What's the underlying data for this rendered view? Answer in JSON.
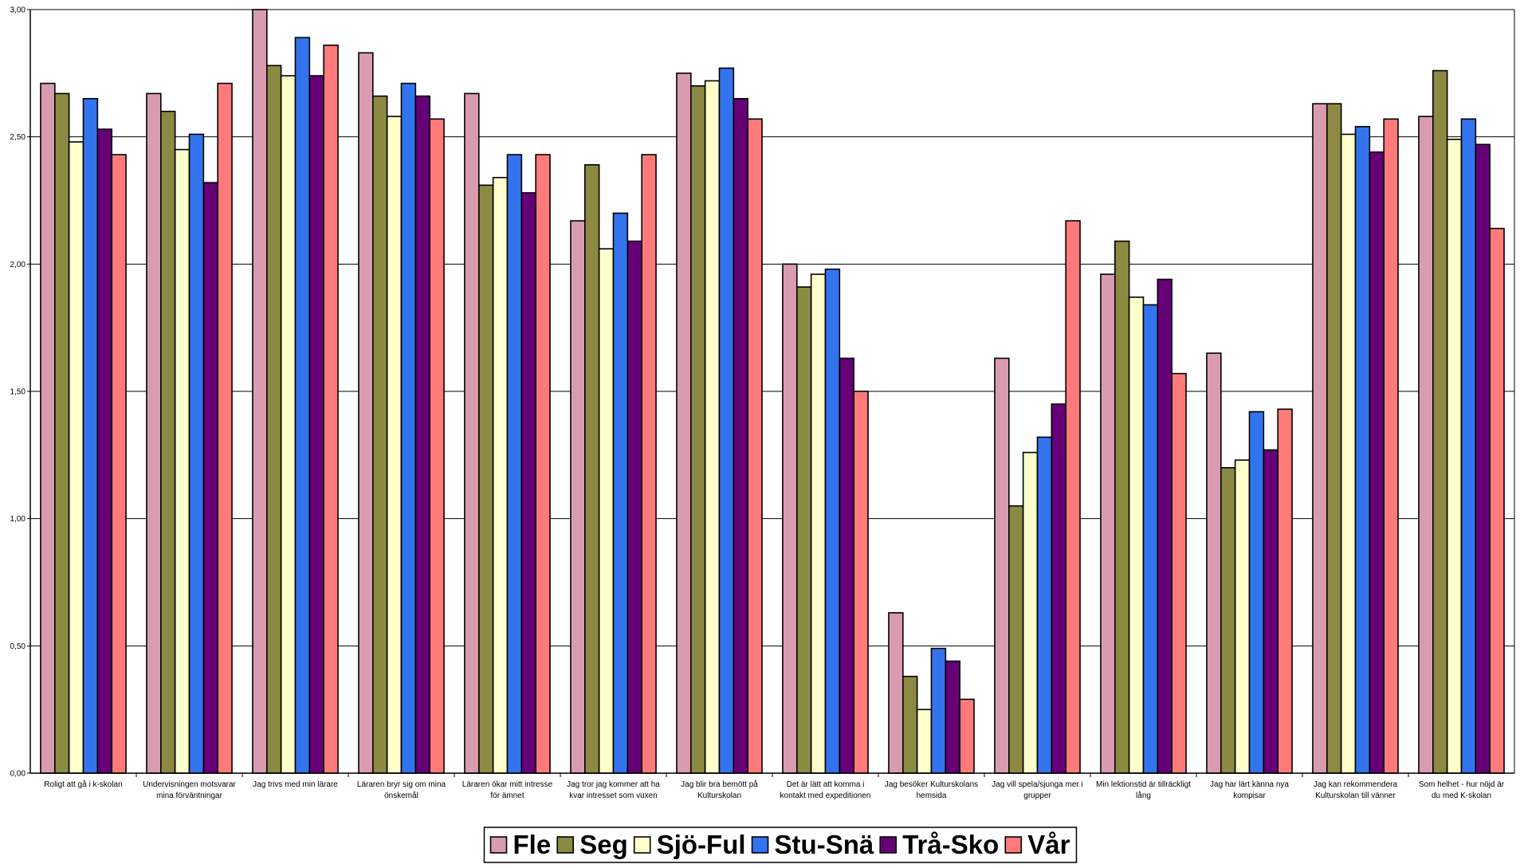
{
  "chart_data": {
    "type": "bar",
    "title": "",
    "xlabel": "",
    "ylabel": "",
    "ylim": [
      0,
      3
    ],
    "yticks": [
      "0,00",
      "0,50",
      "1,00",
      "1,50",
      "2,00",
      "2,50",
      "3,00"
    ],
    "grid": true,
    "legend_position": "bottom-center",
    "categories": [
      [
        "Roligt att gå i k-skolan"
      ],
      [
        "Undervisningen motsvarar",
        "mina förväntningar"
      ],
      [
        "Jag trivs med min lärare"
      ],
      [
        "Läraren bryr sig om mina",
        "önskemål"
      ],
      [
        "Läraren ökar mitt intresse",
        "för ämnet"
      ],
      [
        "Jag tror jag kommer att ha",
        "kvar intresset som vuxen"
      ],
      [
        "Jag blir bra bemött på",
        "Kulturskolan"
      ],
      [
        "Det är lätt att komma i",
        "kontakt med expeditionen"
      ],
      [
        "Jag besöker Kulturskolans",
        "hemsida"
      ],
      [
        "Jag vill spela/sjunga mer i",
        "grupper"
      ],
      [
        "Min lektionstid är tillräckligt",
        "lång"
      ],
      [
        "Jag har lärt känna nya",
        "kompisar"
      ],
      [
        "Jag kan rekommendera",
        "Kulturskolan till vänner"
      ],
      [
        "Som helhet - hur nöjd är",
        "du med K-skolan"
      ]
    ],
    "series": [
      {
        "name": "Fle",
        "color": "#d99bb0",
        "values": [
          2.71,
          2.67,
          3.0,
          2.83,
          2.67,
          2.17,
          2.75,
          2.0,
          0.63,
          1.63,
          1.96,
          1.65,
          2.63,
          2.58
        ]
      },
      {
        "name": "Seg",
        "color": "#8c8a42",
        "values": [
          2.67,
          2.6,
          2.78,
          2.66,
          2.31,
          2.39,
          2.7,
          1.91,
          0.38,
          1.05,
          2.09,
          1.2,
          2.63,
          2.76
        ]
      },
      {
        "name": "Sjö-Ful",
        "color": "#ffffcc",
        "values": [
          2.48,
          2.45,
          2.74,
          2.58,
          2.34,
          2.06,
          2.72,
          1.96,
          0.25,
          1.26,
          1.87,
          1.23,
          2.51,
          2.49
        ]
      },
      {
        "name": "Stu-Snä",
        "color": "#3374ee",
        "values": [
          2.65,
          2.51,
          2.89,
          2.71,
          2.43,
          2.2,
          2.77,
          1.98,
          0.49,
          1.32,
          1.84,
          1.42,
          2.54,
          2.57
        ]
      },
      {
        "name": "Trå-Sko",
        "color": "#660077",
        "values": [
          2.53,
          2.32,
          2.74,
          2.66,
          2.28,
          2.09,
          2.65,
          1.63,
          0.44,
          1.45,
          1.94,
          1.27,
          2.44,
          2.47
        ]
      },
      {
        "name": "Vår",
        "color": "#ff7b7b",
        "values": [
          2.43,
          2.71,
          2.86,
          2.57,
          2.43,
          2.43,
          2.57,
          1.5,
          0.29,
          2.17,
          1.57,
          1.43,
          2.57,
          2.14
        ]
      }
    ]
  }
}
